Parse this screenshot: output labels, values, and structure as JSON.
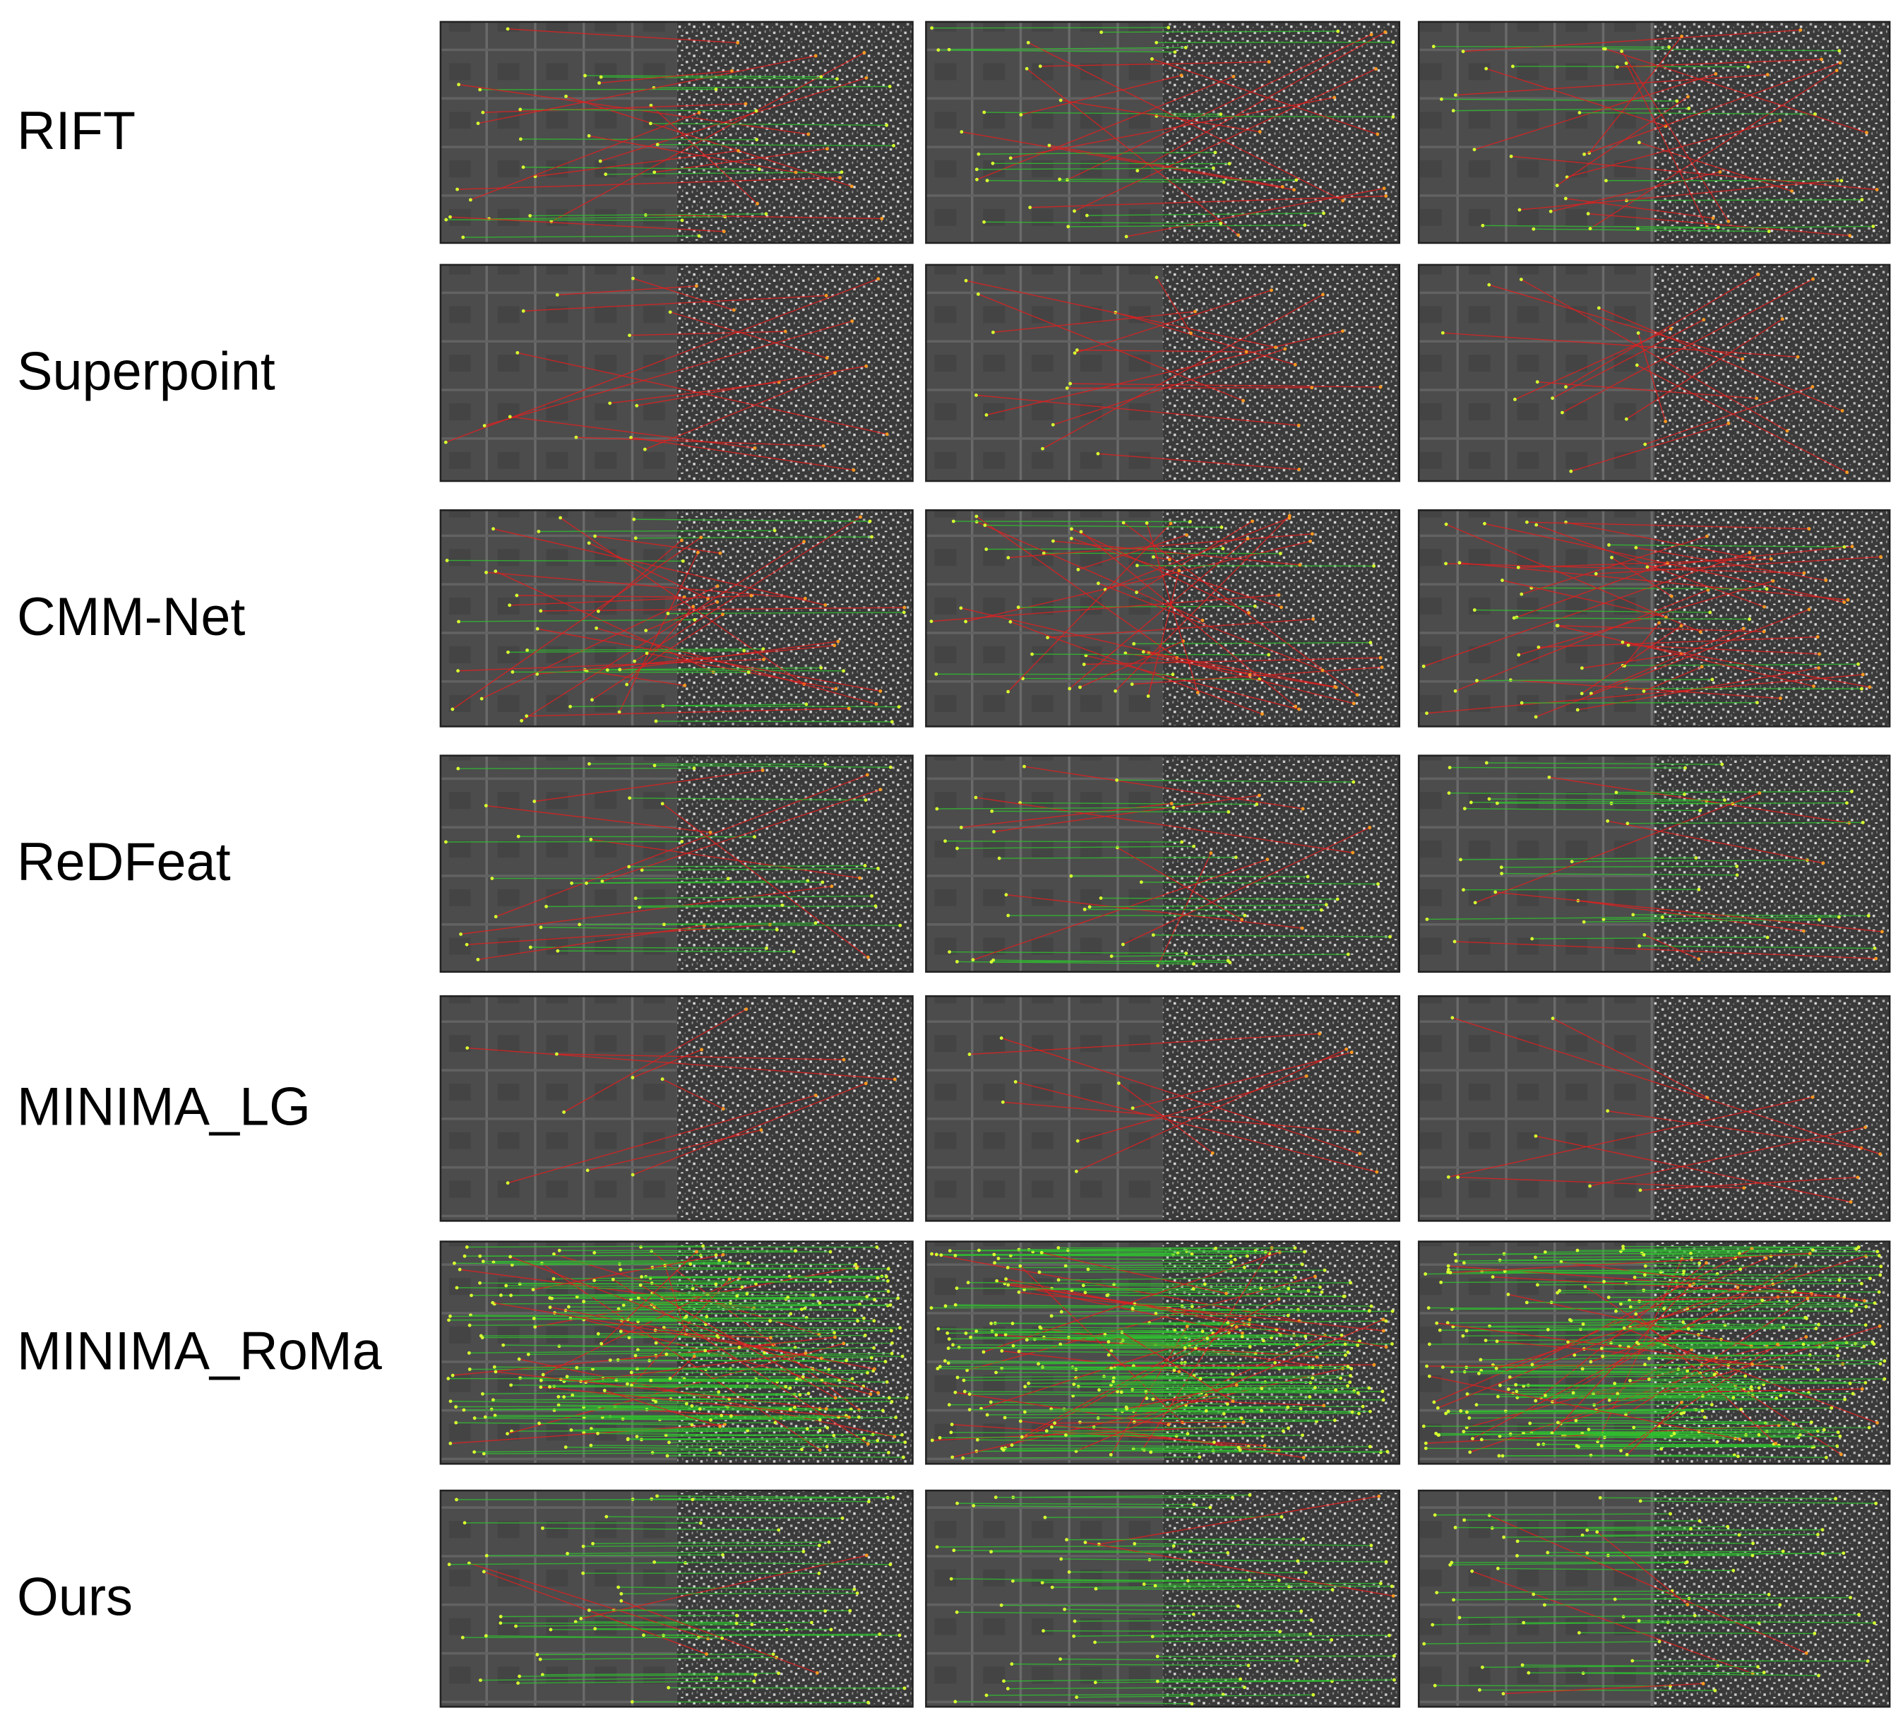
{
  "rows": [
    {
      "label": "RIFT"
    },
    {
      "label": "Superpoint"
    },
    {
      "label": "CMM-Net"
    },
    {
      "label": "ReDFeat"
    },
    {
      "label": "MINIMA_LG"
    },
    {
      "label": "MINIMA_RoMa"
    },
    {
      "label": "Ours"
    }
  ]
}
